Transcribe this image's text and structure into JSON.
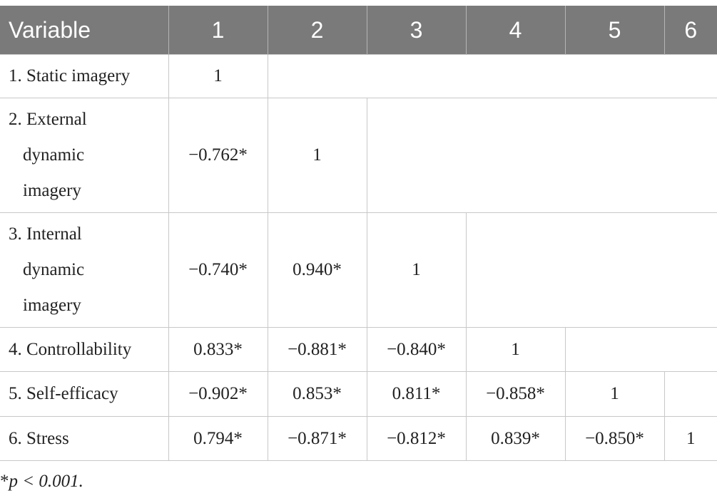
{
  "table": {
    "headers": [
      "Variable",
      "1",
      "2",
      "3",
      "4",
      "5",
      "6"
    ],
    "rows": [
      {
        "label_lines": [
          "1. Static imagery"
        ],
        "values": [
          "1"
        ]
      },
      {
        "label_lines": [
          "2. External",
          "dynamic",
          "imagery"
        ],
        "values": [
          "−0.762*",
          "1"
        ]
      },
      {
        "label_lines": [
          "3. Internal",
          "dynamic",
          "imagery"
        ],
        "values": [
          "−0.740*",
          "0.940*",
          "1"
        ]
      },
      {
        "label_lines": [
          "4. Controllability"
        ],
        "values": [
          "0.833*",
          "−0.881*",
          "−0.840*",
          "1"
        ]
      },
      {
        "label_lines": [
          "5. Self-efficacy"
        ],
        "values": [
          "−0.902*",
          "0.853*",
          "0.811*",
          "−0.858*",
          "1"
        ]
      },
      {
        "label_lines": [
          "6. Stress"
        ],
        "values": [
          "0.794*",
          "−0.871*",
          "−0.812*",
          "0.839*",
          "−0.850*",
          "1"
        ]
      }
    ]
  },
  "footnote": {
    "marker": "*",
    "text": "p < 0.001."
  },
  "colors": {
    "header_bg": "#7a7a7a",
    "header_text": "#ffffff",
    "grid_line": "#c8c8c8"
  }
}
